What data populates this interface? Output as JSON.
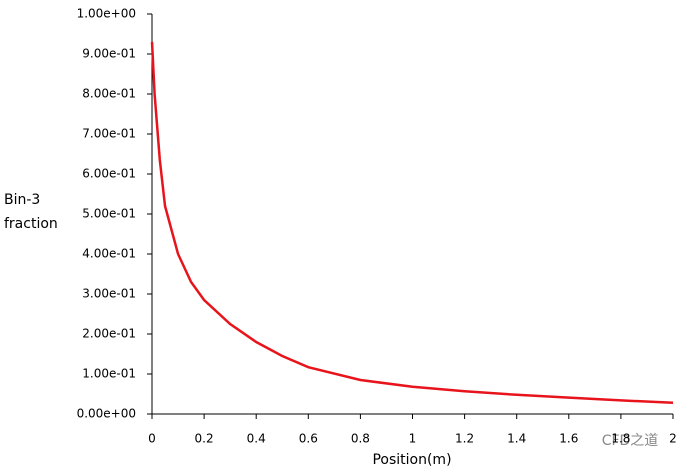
{
  "chart_data": {
    "type": "line",
    "y_label": "Bin-3 fraction",
    "x_label": "Position(m)",
    "watermark": "CFD之道",
    "x": [
      0,
      0.01,
      0.03,
      0.05,
      0.1,
      0.15,
      0.2,
      0.3,
      0.4,
      0.5,
      0.6,
      0.8,
      1.0,
      1.2,
      1.4,
      1.6,
      1.8,
      2.0
    ],
    "series": [
      {
        "name": "Bin-3 fraction",
        "color": "#e8141c",
        "values": [
          0.93,
          0.8,
          0.635,
          0.52,
          0.4,
          0.33,
          0.285,
          0.225,
          0.18,
          0.145,
          0.117,
          0.085,
          0.068,
          0.057,
          0.048,
          0.041,
          0.034,
          0.028
        ]
      }
    ],
    "xlim": [
      0,
      2
    ],
    "xticks": [
      0,
      0.2,
      0.4,
      0.6,
      0.8,
      1,
      1.2,
      1.4,
      1.6,
      1.8,
      2
    ],
    "ylim": [
      0,
      1
    ],
    "yticks": [
      {
        "value": 0,
        "label": "0.00e+00"
      },
      {
        "value": 0.1,
        "label": "1.00e-01"
      },
      {
        "value": 0.2,
        "label": "2.00e-01"
      },
      {
        "value": 0.3,
        "label": "3.00e-01"
      },
      {
        "value": 0.4,
        "label": "4.00e-01"
      },
      {
        "value": 0.5,
        "label": "5.00e-01"
      },
      {
        "value": 0.6,
        "label": "6.00e-01"
      },
      {
        "value": 0.7,
        "label": "7.00e-01"
      },
      {
        "value": 0.8,
        "label": "8.00e-01"
      },
      {
        "value": 0.9,
        "label": "9.00e-01"
      },
      {
        "value": 1,
        "label": "1.00e+00"
      }
    ]
  }
}
